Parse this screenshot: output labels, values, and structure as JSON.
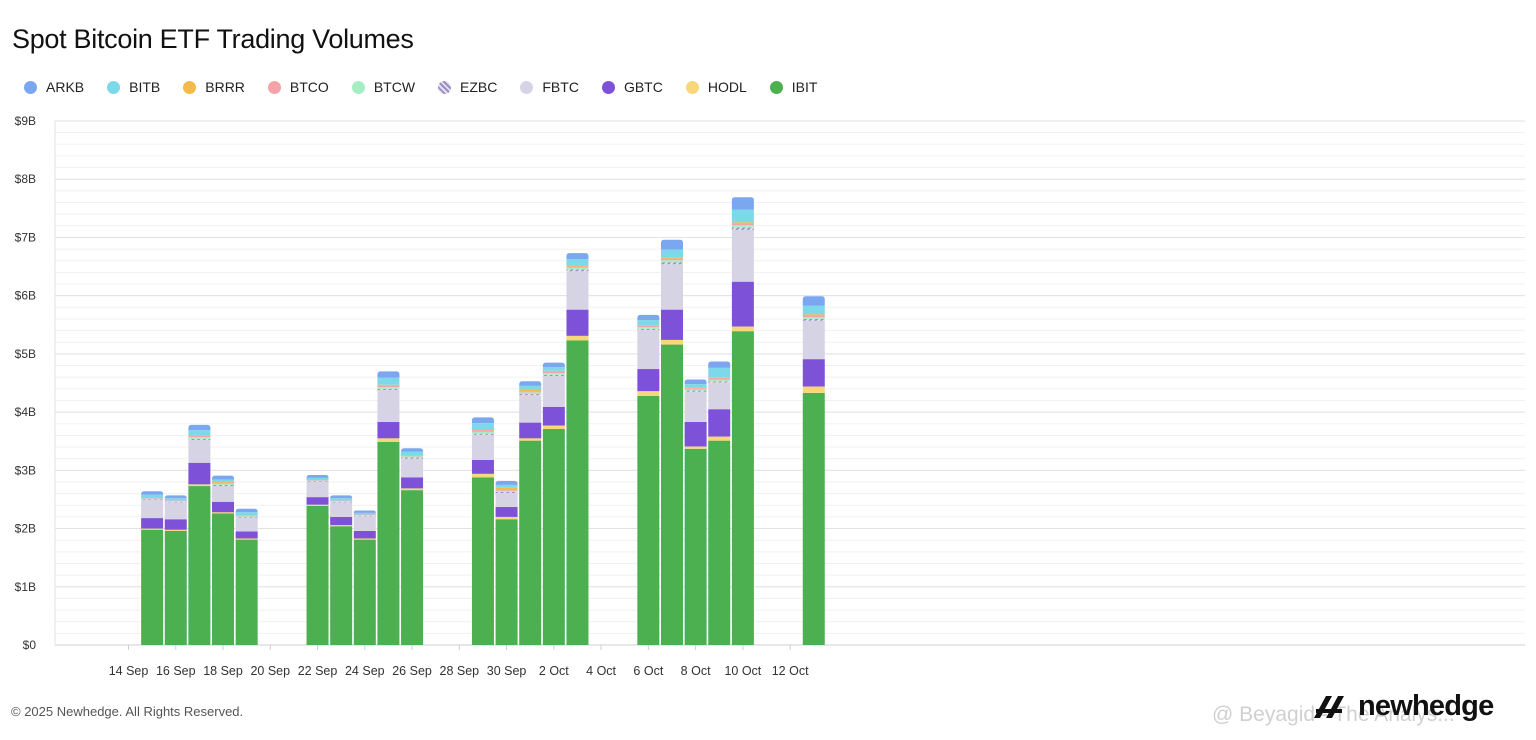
{
  "header": {
    "title": "Spot Bitcoin ETF Trading Volumes"
  },
  "legend": [
    {
      "name": "ARKB",
      "color": "#7aa7f0"
    },
    {
      "name": "BITB",
      "color": "#7dd9ea"
    },
    {
      "name": "BRRR",
      "color": "#f3b94a"
    },
    {
      "name": "BTCO",
      "color": "#f5a3a8"
    },
    {
      "name": "BTCW",
      "color": "#a7edc3"
    },
    {
      "name": "EZBC",
      "color": "#b6acd8",
      "pattern": "hatched"
    },
    {
      "name": "FBTC",
      "color": "#d6d3e5"
    },
    {
      "name": "GBTC",
      "color": "#7e52d8"
    },
    {
      "name": "HODL",
      "color": "#f7d77a"
    },
    {
      "name": "IBIT",
      "color": "#4caf50"
    }
  ],
  "chart_data": {
    "type": "bar",
    "stacked": true,
    "title": "Spot Bitcoin ETF Trading Volumes",
    "xlabel": "",
    "ylabel": "",
    "ylim": [
      0,
      9
    ],
    "y_unit": "$B",
    "y_ticks": [
      "$0",
      "$1B",
      "$2B",
      "$3B",
      "$4B",
      "$5B",
      "$6B",
      "$7B",
      "$8B",
      "$9B"
    ],
    "x_ticks": [
      "14 Sep",
      "16 Sep",
      "18 Sep",
      "20 Sep",
      "22 Sep",
      "24 Sep",
      "26 Sep",
      "28 Sep",
      "30 Sep",
      "2 Oct",
      "4 Oct",
      "6 Oct",
      "8 Oct",
      "10 Oct",
      "12 Oct"
    ],
    "grid": true,
    "legend_position": "top-left",
    "categories": [
      "15 Sep",
      "16 Sep",
      "17 Sep",
      "18 Sep",
      "19 Sep",
      "22 Sep",
      "23 Sep",
      "24 Sep",
      "25 Sep",
      "26 Sep",
      "29 Sep",
      "30 Sep",
      "1 Oct",
      "2 Oct",
      "3 Oct",
      "6 Oct",
      "7 Oct",
      "8 Oct",
      "9 Oct",
      "10 Oct",
      "13 Oct"
    ],
    "day_index": [
      1,
      2,
      3,
      4,
      5,
      8,
      9,
      10,
      11,
      12,
      15,
      16,
      17,
      18,
      19,
      22,
      23,
      24,
      25,
      26,
      29
    ],
    "series": [
      {
        "name": "IBIT",
        "values": [
          1.98,
          1.96,
          2.73,
          2.26,
          1.81,
          2.39,
          2.04,
          1.81,
          3.49,
          2.66,
          2.88,
          2.16,
          3.51,
          3.71,
          5.23,
          4.28,
          5.16,
          3.37,
          3.51,
          5.39,
          4.33
        ]
      },
      {
        "name": "HODL",
        "values": [
          0.02,
          0.02,
          0.03,
          0.02,
          0.02,
          0.02,
          0.02,
          0.02,
          0.06,
          0.03,
          0.06,
          0.04,
          0.04,
          0.06,
          0.08,
          0.08,
          0.08,
          0.04,
          0.07,
          0.08,
          0.11
        ]
      },
      {
        "name": "GBTC",
        "values": [
          0.18,
          0.18,
          0.37,
          0.18,
          0.12,
          0.13,
          0.14,
          0.13,
          0.28,
          0.19,
          0.24,
          0.17,
          0.27,
          0.32,
          0.45,
          0.38,
          0.52,
          0.42,
          0.47,
          0.77,
          0.47
        ]
      },
      {
        "name": "FBTC",
        "values": [
          0.31,
          0.29,
          0.39,
          0.27,
          0.24,
          0.26,
          0.25,
          0.25,
          0.55,
          0.32,
          0.43,
          0.24,
          0.47,
          0.53,
          0.66,
          0.67,
          0.78,
          0.52,
          0.46,
          0.89,
          0.66
        ]
      },
      {
        "name": "EZBC",
        "values": [
          0.01,
          0.01,
          0.02,
          0.02,
          0.01,
          0.01,
          0.01,
          0.01,
          0.02,
          0.02,
          0.02,
          0.02,
          0.02,
          0.02,
          0.03,
          0.02,
          0.03,
          0.02,
          0.02,
          0.04,
          0.03
        ]
      },
      {
        "name": "BTCW",
        "values": [
          0.01,
          0.01,
          0.03,
          0.02,
          0.01,
          0.01,
          0.01,
          0.01,
          0.03,
          0.02,
          0.03,
          0.02,
          0.03,
          0.03,
          0.03,
          0.03,
          0.04,
          0.02,
          0.03,
          0.04,
          0.03
        ]
      },
      {
        "name": "BTCO",
        "values": [
          0.01,
          0.01,
          0.02,
          0.02,
          0.01,
          0.01,
          0.01,
          0.01,
          0.02,
          0.02,
          0.03,
          0.02,
          0.02,
          0.02,
          0.02,
          0.02,
          0.03,
          0.02,
          0.03,
          0.03,
          0.03
        ]
      },
      {
        "name": "BRRR",
        "values": [
          0.0,
          0.0,
          0.01,
          0.01,
          0.0,
          0.0,
          0.0,
          0.0,
          0.02,
          0.0,
          0.02,
          0.04,
          0.02,
          0.02,
          0.02,
          0.01,
          0.02,
          0.01,
          0.01,
          0.02,
          0.02
        ]
      },
      {
        "name": "BITB",
        "values": [
          0.06,
          0.04,
          0.09,
          0.04,
          0.06,
          0.04,
          0.04,
          0.03,
          0.12,
          0.06,
          0.1,
          0.04,
          0.07,
          0.06,
          0.11,
          0.09,
          0.13,
          0.06,
          0.16,
          0.22,
          0.15
        ]
      },
      {
        "name": "ARKB",
        "values": [
          0.06,
          0.05,
          0.09,
          0.07,
          0.06,
          0.05,
          0.05,
          0.04,
          0.11,
          0.06,
          0.1,
          0.07,
          0.08,
          0.08,
          0.1,
          0.09,
          0.17,
          0.08,
          0.11,
          0.21,
          0.16
        ]
      }
    ]
  },
  "footer": {
    "copyright": "© 2025 Newhedge. All Rights Reserved.",
    "brand": "newhedge"
  },
  "watermark": {
    "text": "@ Beyagid - The Analys..."
  }
}
